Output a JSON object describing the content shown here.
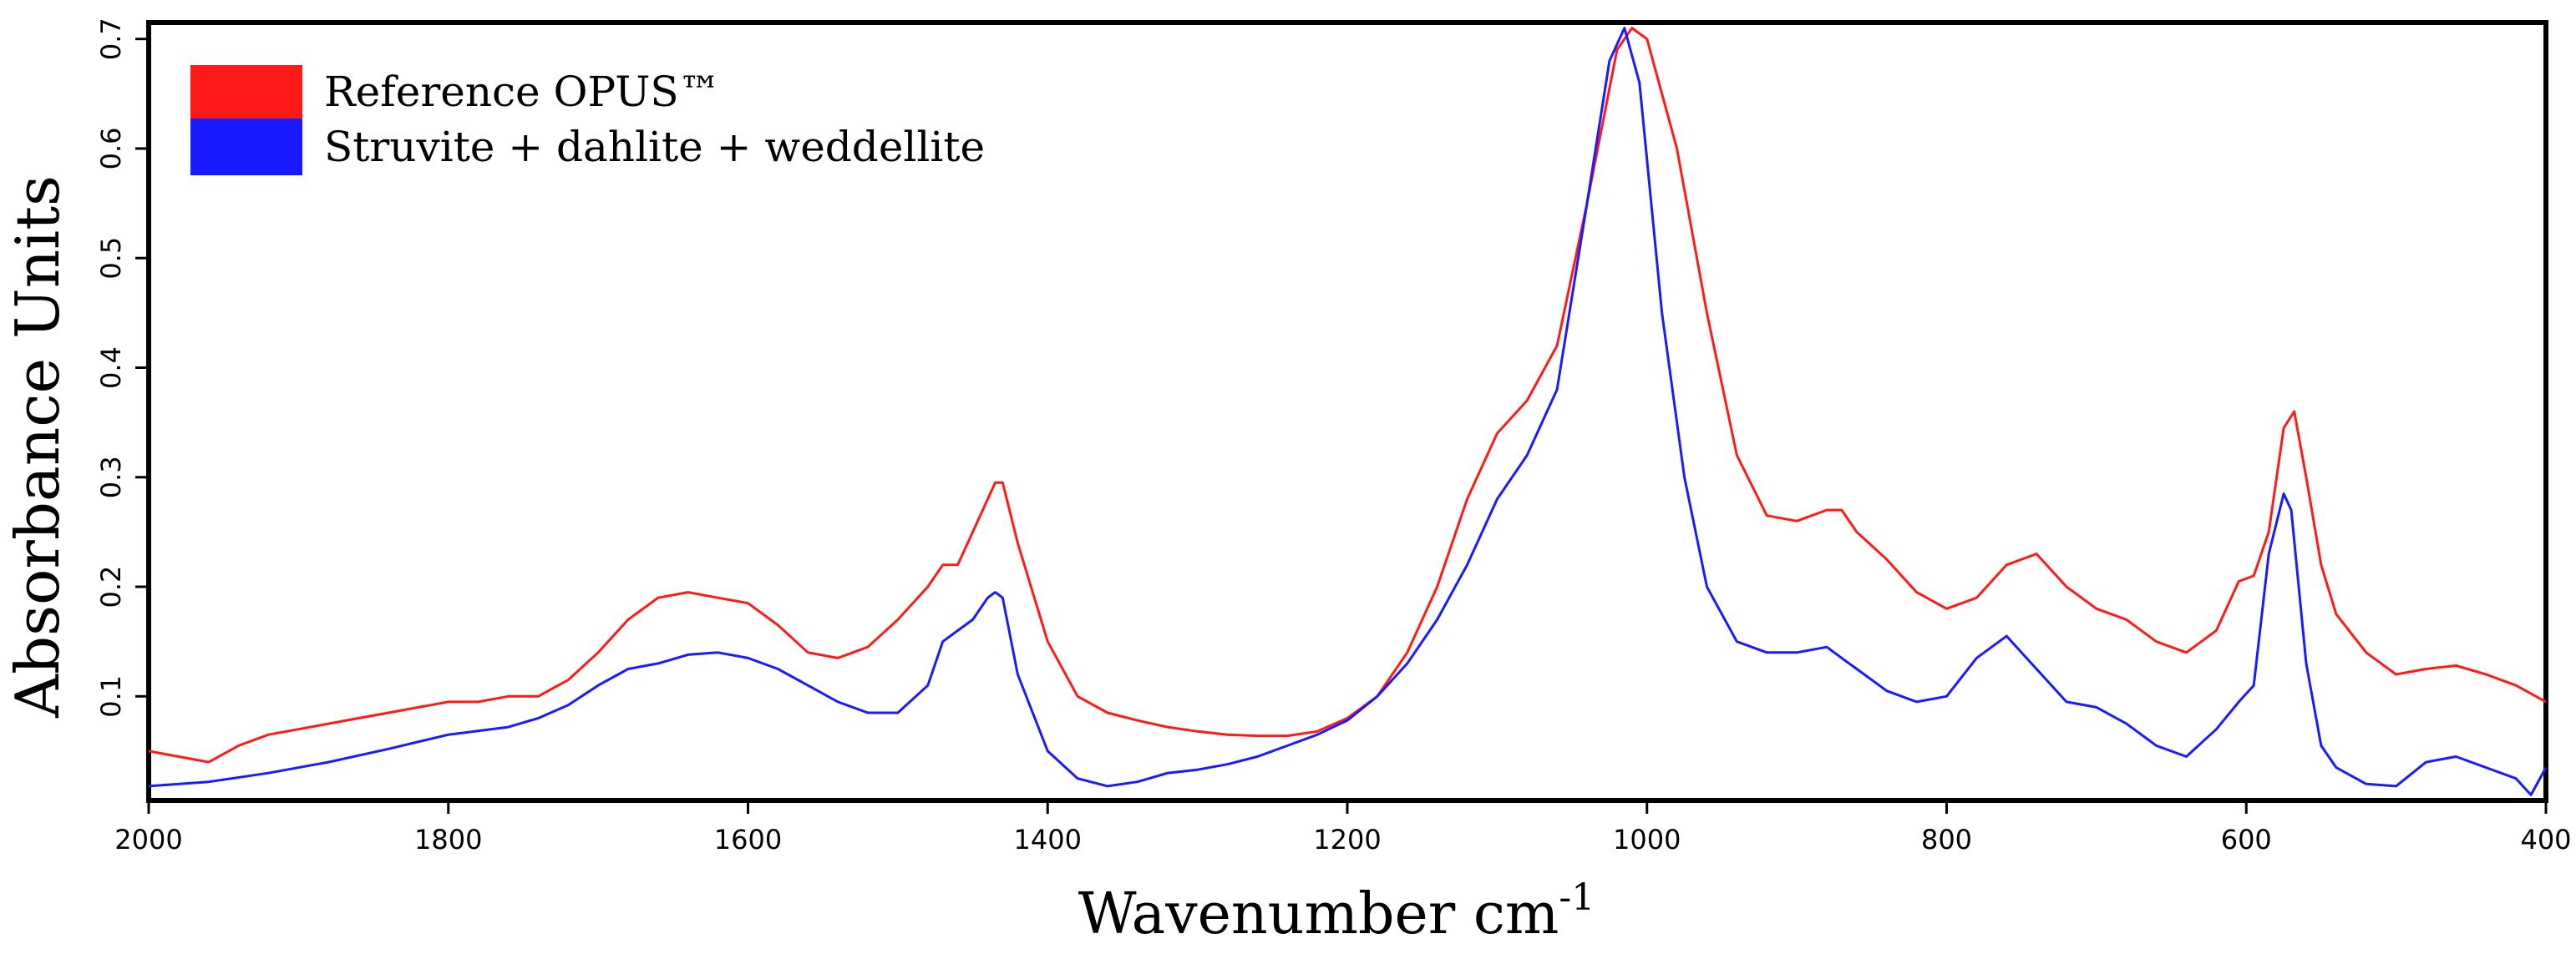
{
  "chart_data": {
    "type": "line",
    "title": "",
    "xlabel": "Wavenumber cm",
    "xlabel_superscript": "-1",
    "ylabel": "Absorbance Units",
    "xlim": [
      2000,
      400
    ],
    "ylim": [
      0.005,
      0.715
    ],
    "x_ticks": [
      2000,
      1800,
      1600,
      1400,
      1200,
      1000,
      800,
      600,
      400
    ],
    "x_tick_labels": [
      "2000",
      "1800",
      "1600",
      "1400",
      "1200",
      "1000",
      "800",
      "600",
      "400"
    ],
    "y_ticks": [
      0.1,
      0.2,
      0.3,
      0.4,
      0.5,
      0.6,
      0.7
    ],
    "y_tick_labels": [
      "0.1",
      "0.2",
      "0.3",
      "0.4",
      "0.5",
      "0.6",
      "0.7"
    ],
    "grid": false,
    "legend_position": "top-left",
    "series": [
      {
        "name": "Reference OPUS™",
        "color": "#ff1a1a",
        "x": [
          2000,
          1980,
          1960,
          1940,
          1920,
          1900,
          1880,
          1860,
          1840,
          1820,
          1800,
          1780,
          1760,
          1740,
          1720,
          1700,
          1680,
          1660,
          1640,
          1620,
          1600,
          1580,
          1560,
          1540,
          1520,
          1500,
          1480,
          1470,
          1460,
          1450,
          1440,
          1435,
          1430,
          1420,
          1400,
          1380,
          1360,
          1340,
          1320,
          1300,
          1280,
          1260,
          1240,
          1220,
          1200,
          1180,
          1160,
          1140,
          1120,
          1100,
          1080,
          1060,
          1040,
          1020,
          1010,
          1000,
          980,
          960,
          940,
          920,
          900,
          880,
          870,
          860,
          840,
          820,
          800,
          780,
          760,
          740,
          720,
          700,
          680,
          660,
          640,
          620,
          605,
          595,
          585,
          575,
          568,
          560,
          550,
          540,
          520,
          500,
          480,
          460,
          440,
          420,
          400
        ],
        "y": [
          0.05,
          0.045,
          0.04,
          0.055,
          0.065,
          0.07,
          0.075,
          0.08,
          0.085,
          0.09,
          0.095,
          0.095,
          0.1,
          0.1,
          0.115,
          0.14,
          0.17,
          0.19,
          0.195,
          0.19,
          0.185,
          0.165,
          0.14,
          0.135,
          0.145,
          0.17,
          0.2,
          0.22,
          0.22,
          0.25,
          0.28,
          0.295,
          0.295,
          0.24,
          0.15,
          0.1,
          0.085,
          0.078,
          0.072,
          0.068,
          0.065,
          0.064,
          0.064,
          0.068,
          0.08,
          0.1,
          0.14,
          0.2,
          0.28,
          0.34,
          0.37,
          0.42,
          0.55,
          0.69,
          0.71,
          0.7,
          0.6,
          0.45,
          0.32,
          0.265,
          0.26,
          0.27,
          0.27,
          0.25,
          0.225,
          0.195,
          0.18,
          0.19,
          0.22,
          0.23,
          0.2,
          0.18,
          0.17,
          0.15,
          0.14,
          0.16,
          0.205,
          0.21,
          0.25,
          0.345,
          0.36,
          0.3,
          0.22,
          0.175,
          0.14,
          0.12,
          0.125,
          0.128,
          0.12,
          0.11,
          0.095
        ]
      },
      {
        "name": "Struvite + dahlite + weddellite",
        "color": "#1a1aff",
        "x": [
          2000,
          1960,
          1920,
          1880,
          1840,
          1800,
          1760,
          1740,
          1720,
          1700,
          1680,
          1660,
          1640,
          1620,
          1600,
          1580,
          1560,
          1540,
          1520,
          1500,
          1480,
          1470,
          1460,
          1450,
          1440,
          1435,
          1430,
          1420,
          1400,
          1380,
          1360,
          1340,
          1320,
          1300,
          1280,
          1260,
          1240,
          1220,
          1200,
          1180,
          1160,
          1140,
          1120,
          1100,
          1080,
          1060,
          1040,
          1025,
          1015,
          1005,
          990,
          975,
          960,
          940,
          920,
          900,
          880,
          870,
          860,
          840,
          820,
          800,
          780,
          760,
          740,
          720,
          700,
          680,
          660,
          640,
          620,
          605,
          595,
          585,
          575,
          570,
          560,
          550,
          540,
          520,
          500,
          480,
          460,
          440,
          420,
          410,
          400
        ],
        "y": [
          0.018,
          0.022,
          0.03,
          0.04,
          0.052,
          0.065,
          0.072,
          0.08,
          0.092,
          0.11,
          0.125,
          0.13,
          0.138,
          0.14,
          0.135,
          0.125,
          0.11,
          0.095,
          0.085,
          0.085,
          0.11,
          0.15,
          0.16,
          0.17,
          0.19,
          0.195,
          0.19,
          0.12,
          0.05,
          0.025,
          0.018,
          0.022,
          0.03,
          0.033,
          0.038,
          0.045,
          0.055,
          0.065,
          0.078,
          0.1,
          0.13,
          0.17,
          0.22,
          0.28,
          0.32,
          0.38,
          0.55,
          0.68,
          0.71,
          0.66,
          0.45,
          0.3,
          0.2,
          0.15,
          0.14,
          0.14,
          0.145,
          0.135,
          0.125,
          0.105,
          0.095,
          0.1,
          0.135,
          0.155,
          0.125,
          0.095,
          0.09,
          0.075,
          0.055,
          0.045,
          0.07,
          0.095,
          0.11,
          0.23,
          0.285,
          0.27,
          0.13,
          0.055,
          0.035,
          0.02,
          0.018,
          0.04,
          0.045,
          0.035,
          0.025,
          0.01,
          0.035
        ]
      }
    ]
  }
}
